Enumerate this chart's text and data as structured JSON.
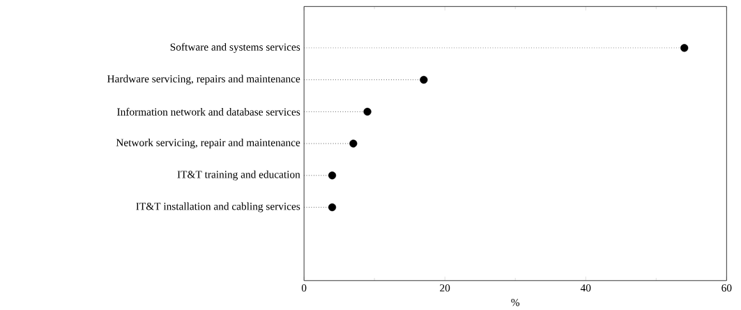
{
  "chart_data": {
    "type": "lollipop",
    "orientation": "horizontal",
    "xlabel": "%",
    "categories": [
      "Software and systems services",
      "Hardware servicing, repairs and maintenance",
      "Information network and database services",
      "Network servicing, repair and maintenance",
      "IT&T training and education",
      "IT&T installation and cabling services"
    ],
    "values": [
      54,
      17,
      9,
      7,
      4,
      4
    ],
    "color": "#000000",
    "marker": "circle",
    "line_style": "dotted",
    "xlim": [
      0,
      60
    ],
    "xticks": [
      0,
      20,
      40,
      60
    ]
  }
}
